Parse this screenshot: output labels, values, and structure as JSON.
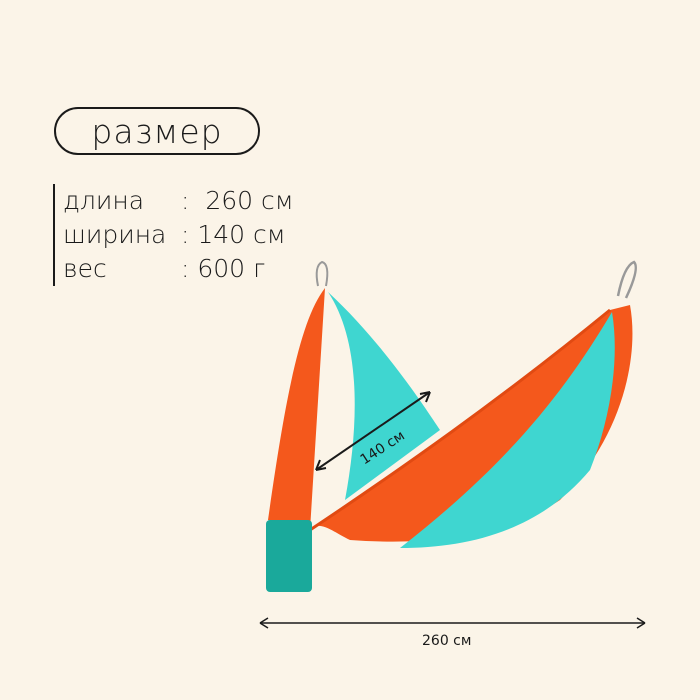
{
  "title": "размер",
  "specs": [
    {
      "label": "длина",
      "value": ":  260 см"
    },
    {
      "label": "ширина",
      "value": ": 140 см"
    },
    {
      "label": "вес",
      "value": ": 600 г"
    }
  ],
  "dimensions": {
    "width_label": "140 см",
    "length_label": "260 см"
  },
  "colors": {
    "background": "#fbf4e8",
    "orange": "#f4581c",
    "turquoise": "#3fd6d0",
    "pouch": "#1aa99b"
  }
}
